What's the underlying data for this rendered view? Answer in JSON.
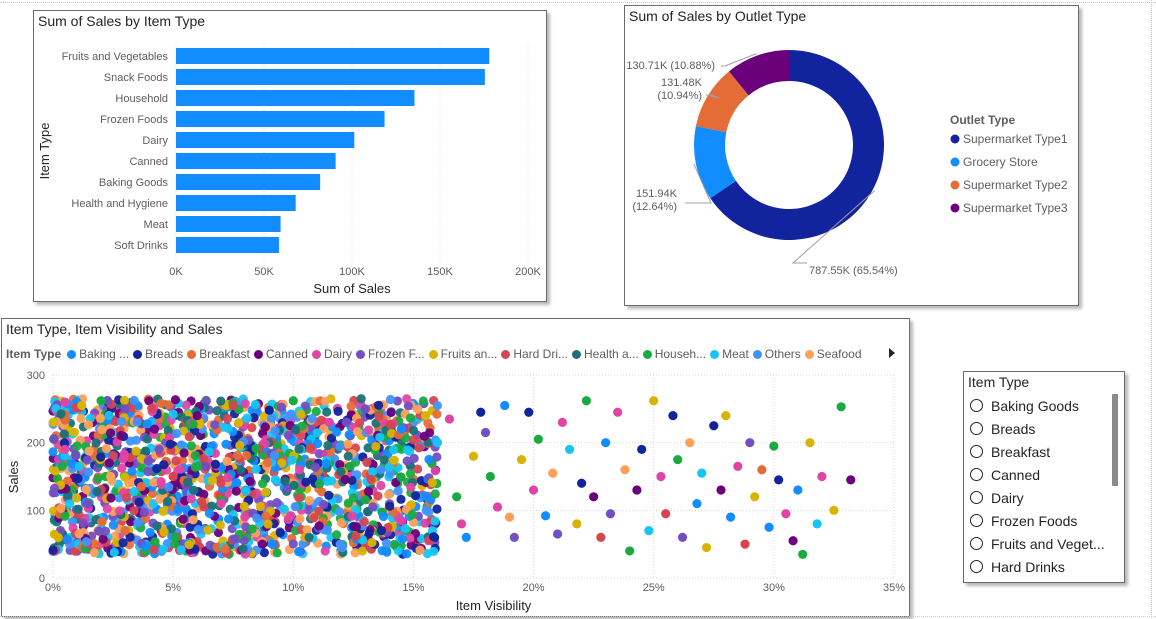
{
  "bar_chart": {
    "title": "Sum of Sales by Item Type",
    "chart_data": {
      "type": "bar",
      "orientation": "horizontal",
      "categories": [
        "Fruits and Vegetables",
        "Snack Foods",
        "Household",
        "Frozen Foods",
        "Dairy",
        "Canned",
        "Baking Goods",
        "Health and Hygiene",
        "Meat",
        "Soft Drinks"
      ],
      "values": [
        178000,
        175500,
        135500,
        118500,
        101300,
        90700,
        81900,
        68000,
        59400,
        58500
      ],
      "xlabel": "Sum of Sales",
      "ylabel": "Item Type",
      "xlim": [
        0,
        200000
      ],
      "x_ticks": [
        "0K",
        "50K",
        "100K",
        "150K",
        "200K"
      ],
      "bar_color": "#118DFF",
      "grid": "vertical dotted"
    }
  },
  "donut_chart": {
    "title": "Sum of Sales by Outlet Type",
    "chart_data": {
      "type": "pie",
      "style": "donut",
      "legend_title": "Outlet Type",
      "legend_position": "right",
      "slices": [
        {
          "name": "Supermarket Type1",
          "value": 787550,
          "label_value": "787.55K",
          "label_pct": "(65.54%)",
          "color": "#12239E"
        },
        {
          "name": "Grocery Store",
          "value": 151940,
          "label_value": "151.94K",
          "label_pct": "(12.64%)",
          "color": "#118DFF"
        },
        {
          "name": "Supermarket Type2",
          "value": 131480,
          "label_value": "131.48K",
          "label_pct": "(10.94%)",
          "color": "#E66C37"
        },
        {
          "name": "Supermarket Type3",
          "value": 130710,
          "label_value": "130.71K",
          "label_pct": "(10.88%)",
          "color": "#6B007B"
        }
      ]
    }
  },
  "scatter_chart": {
    "title": "Item Type, Item Visibility and Sales",
    "legend_title": "Item Type",
    "legend_items": [
      {
        "label": "Baking ...",
        "color": "#118DFF"
      },
      {
        "label": "Breads",
        "color": "#12239E"
      },
      {
        "label": "Breakfast",
        "color": "#E66C37"
      },
      {
        "label": "Canned",
        "color": "#6B007B"
      },
      {
        "label": "Dairy",
        "color": "#E044A7"
      },
      {
        "label": "Frozen F...",
        "color": "#744EC2"
      },
      {
        "label": "Fruits an...",
        "color": "#D9B300"
      },
      {
        "label": "Hard Dri...",
        "color": "#D64550"
      },
      {
        "label": "Health a...",
        "color": "#197278"
      },
      {
        "label": "Househ...",
        "color": "#1AAB40"
      },
      {
        "label": "Meat",
        "color": "#15C6F4"
      },
      {
        "label": "Others",
        "color": "#4092FF"
      },
      {
        "label": "Seafood",
        "color": "#FFA058"
      }
    ],
    "chart_data": {
      "type": "scatter",
      "xlabel": "Item Visibility",
      "ylabel": "Sales",
      "xlim": [
        0,
        0.35
      ],
      "ylim": [
        0,
        300
      ],
      "x_ticks": [
        "0%",
        "5%",
        "10%",
        "15%",
        "20%",
        "25%",
        "30%",
        "35%"
      ],
      "y_ticks": [
        "0",
        "100",
        "200",
        "300"
      ],
      "grid": "dotted",
      "series_names": [
        "Baking Goods",
        "Breads",
        "Breakfast",
        "Canned",
        "Dairy",
        "Frozen Foods",
        "Fruits and Vegetables",
        "Hard Drinks",
        "Health and Hygiene",
        "Household",
        "Meat",
        "Others",
        "Seafood"
      ],
      "series_colors": [
        "#118DFF",
        "#12239E",
        "#E66C37",
        "#6B007B",
        "#E044A7",
        "#744EC2",
        "#D9B300",
        "#D64550",
        "#197278",
        "#1AAB40",
        "#15C6F4",
        "#4092FF",
        "#FFA058"
      ],
      "dense_region": {
        "x": [
          0.0,
          0.16
        ],
        "y": [
          35,
          265
        ]
      },
      "points": [
        [
          0.005,
          260,
          4
        ],
        [
          0.012,
          255,
          6
        ],
        [
          0.02,
          262,
          9
        ],
        [
          0.03,
          250,
          5
        ],
        [
          0.045,
          258,
          2
        ],
        [
          0.06,
          240,
          3
        ],
        [
          0.075,
          255,
          7
        ],
        [
          0.09,
          248,
          1
        ],
        [
          0.1,
          262,
          9
        ],
        [
          0.115,
          230,
          4
        ],
        [
          0.13,
          250,
          5
        ],
        [
          0.145,
          220,
          0
        ],
        [
          0.155,
          240,
          6
        ],
        [
          0.16,
          200,
          10
        ],
        [
          0.165,
          235,
          4
        ],
        [
          0.168,
          120,
          9
        ],
        [
          0.17,
          80,
          4
        ],
        [
          0.172,
          60,
          0
        ],
        [
          0.175,
          180,
          6
        ],
        [
          0.178,
          245,
          1
        ],
        [
          0.18,
          215,
          5
        ],
        [
          0.182,
          150,
          9
        ],
        [
          0.185,
          105,
          4
        ],
        [
          0.188,
          255,
          0
        ],
        [
          0.19,
          90,
          12
        ],
        [
          0.192,
          60,
          5
        ],
        [
          0.195,
          175,
          6
        ],
        [
          0.198,
          245,
          1
        ],
        [
          0.2,
          130,
          4
        ],
        [
          0.202,
          205,
          9
        ],
        [
          0.205,
          92,
          0
        ],
        [
          0.208,
          155,
          12
        ],
        [
          0.21,
          65,
          5
        ],
        [
          0.212,
          230,
          4
        ],
        [
          0.215,
          190,
          10
        ],
        [
          0.218,
          80,
          6
        ],
        [
          0.22,
          140,
          1
        ],
        [
          0.222,
          262,
          9
        ],
        [
          0.225,
          120,
          3
        ],
        [
          0.228,
          60,
          7
        ],
        [
          0.23,
          200,
          0
        ],
        [
          0.232,
          95,
          5
        ],
        [
          0.235,
          245,
          4
        ],
        [
          0.238,
          160,
          12
        ],
        [
          0.24,
          40,
          9
        ],
        [
          0.243,
          130,
          3
        ],
        [
          0.245,
          190,
          1
        ],
        [
          0.248,
          70,
          10
        ],
        [
          0.25,
          262,
          6
        ],
        [
          0.253,
          150,
          4
        ],
        [
          0.255,
          95,
          7
        ],
        [
          0.258,
          240,
          1
        ],
        [
          0.26,
          175,
          9
        ],
        [
          0.262,
          60,
          5
        ],
        [
          0.265,
          200,
          12
        ],
        [
          0.268,
          110,
          0
        ],
        [
          0.27,
          155,
          10
        ],
        [
          0.272,
          45,
          6
        ],
        [
          0.275,
          225,
          1
        ],
        [
          0.278,
          130,
          3
        ],
        [
          0.28,
          240,
          6
        ],
        [
          0.282,
          90,
          0
        ],
        [
          0.285,
          165,
          4
        ],
        [
          0.288,
          50,
          7
        ],
        [
          0.29,
          200,
          5
        ],
        [
          0.292,
          120,
          6
        ],
        [
          0.295,
          160,
          2
        ],
        [
          0.298,
          75,
          0
        ],
        [
          0.3,
          195,
          9
        ],
        [
          0.302,
          145,
          1
        ],
        [
          0.305,
          95,
          4
        ],
        [
          0.308,
          55,
          3
        ],
        [
          0.31,
          130,
          0
        ],
        [
          0.312,
          35,
          9
        ],
        [
          0.315,
          200,
          6
        ],
        [
          0.318,
          80,
          10
        ],
        [
          0.32,
          150,
          4
        ],
        [
          0.325,
          100,
          6
        ],
        [
          0.328,
          253,
          9
        ],
        [
          0.332,
          145,
          3
        ],
        [
          0.024,
          150,
          12
        ],
        [
          0.03,
          70,
          2
        ],
        [
          0.05,
          150,
          7
        ],
        [
          0.07,
          110,
          4
        ],
        [
          0.005,
          190,
          4
        ]
      ]
    }
  },
  "slicer": {
    "title": "Item Type",
    "items": [
      "Baking Goods",
      "Breads",
      "Breakfast",
      "Canned",
      "Dairy",
      "Frozen Foods",
      "Fruits and Veget...",
      "Hard Drinks"
    ]
  }
}
